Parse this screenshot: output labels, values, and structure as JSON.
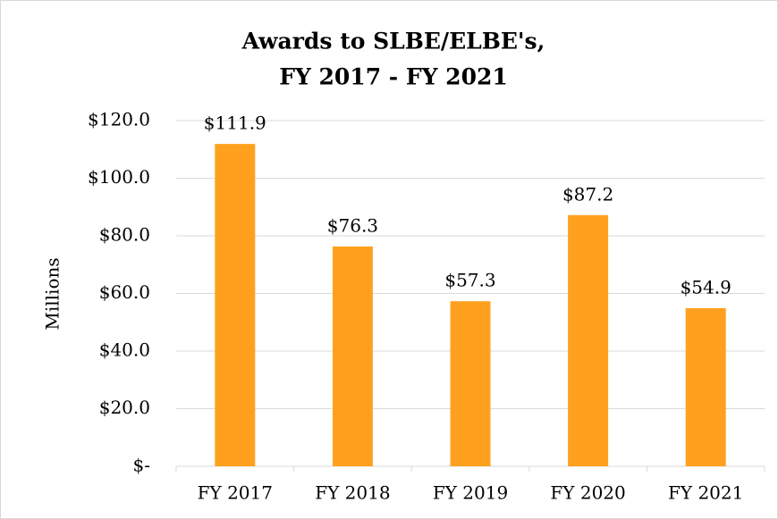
{
  "chart_data": {
    "type": "bar",
    "title": [
      "Awards to SLBE/ELBE's,",
      "FY 2017 - FY 2021"
    ],
    "y_label": "Millions",
    "categories": [
      "FY 2017",
      "FY 2018",
      "FY 2019",
      "FY 2020",
      "FY 2021"
    ],
    "values": [
      111.9,
      76.3,
      57.3,
      87.2,
      54.9
    ],
    "value_labels": [
      "$111.9",
      "$76.3",
      "$57.3",
      "$87.2",
      "$54.9"
    ],
    "color": "#ffa11f",
    "ylim": [
      0,
      120
    ],
    "yticks": [
      {
        "value": 0,
        "label": "$-"
      },
      {
        "value": 20,
        "label": "$20.0"
      },
      {
        "value": 40,
        "label": "$40.0"
      },
      {
        "value": 60,
        "label": "$60.0"
      },
      {
        "value": 80,
        "label": "$80.0"
      },
      {
        "value": 100,
        "label": "$100.0"
      },
      {
        "value": 120,
        "label": "$120.0"
      }
    ],
    "grid": true
  }
}
